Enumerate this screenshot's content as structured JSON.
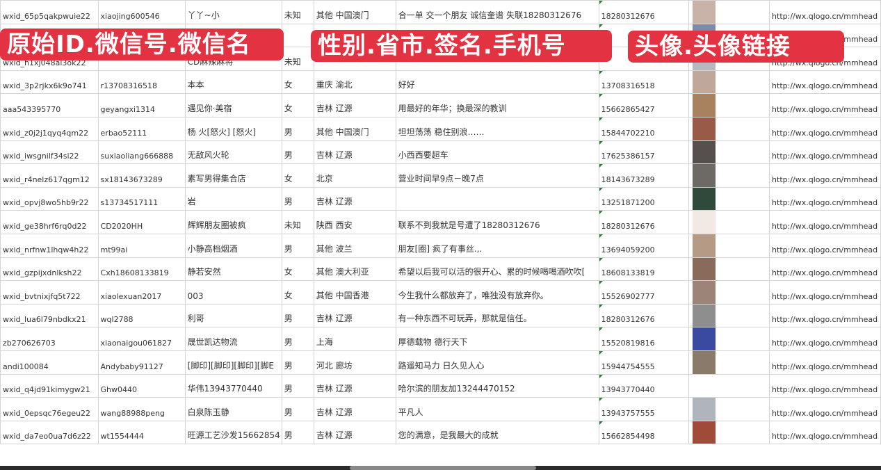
{
  "overlay_labels": [
    "原始ID.微信号.微信名",
    "性别.省市.签名.手机号",
    "头像.头像链接"
  ],
  "columns": [
    "原始ID",
    "微信号",
    "微信名",
    "性别",
    "省市",
    "签名",
    "手机号",
    "头像",
    "头像链接"
  ],
  "rows": [
    [
      "wxid_65p5qakpwuie22",
      "xiaojing600546",
      "丫丫~小",
      "未知",
      "其他 中国澳门",
      "合一单 交一个朋友 诚信奎谱 失联18280312676",
      "18280312676",
      "#c9b2a8",
      "http://wx.qlogo.cn/mmhead"
    ],
    [
      "",
      "",
      "",
      "",
      "",
      "",
      "",
      "#7d8aa8",
      "http://wx.qlogo.cn/mmhead"
    ],
    [
      "wxid_h1xj048al3ok22",
      "",
      "CD麻辣麻将",
      "未知",
      "",
      "",
      "",
      "#b8b8c0",
      "http://wx.qlogo.cn/mmhead"
    ],
    [
      "wxid_3p2rjkx6k9o741",
      "r13708316518",
      "本本",
      "女",
      "重庆 渝北",
      "好好",
      "13708316518",
      "#bfa89a",
      "http://wx.qlogo.cn/mmhead"
    ],
    [
      "aaa543395770",
      "geyangxi1314",
      "遇见你·美宿",
      "女",
      "吉林 辽源",
      "用最好的年华；换最深的教训",
      "15662865427",
      "#a8825e",
      "http://wx.qlogo.cn/mmhead"
    ],
    [
      "wxid_z0j2j1qyq4qm22",
      "erbao52111",
      "杨 火[怒火] [怒火]",
      "男",
      "其他 中国澳门",
      "坦坦荡荡 稳住别浪……",
      "15844702210",
      "#9a5a48",
      "http://wx.qlogo.cn/mmhead"
    ],
    [
      "wxid_iwsgnilf34si22",
      "suxiaoliang666888",
      "无敌风火轮",
      "男",
      "吉林 辽源",
      "小西西要超车",
      "17625386157",
      "#55504e",
      "http://wx.qlogo.cn/mmhead"
    ],
    [
      "wxid_r4nelz617qgm12",
      "sx18143673289",
      "素写男得集合店",
      "女",
      "北京",
      "营业时间早9点－晚7点",
      "18143673289",
      "#6d6a66",
      "http://wx.qlogo.cn/mmhead"
    ],
    [
      "wxid_opvj8wo5hb9r22",
      "s13734517111",
      "岩",
      "男",
      "吉林 辽源",
      "",
      "13251871200",
      "#2f4a3a",
      "http://wx.qlogo.cn/mmhead"
    ],
    [
      "wxid_ge38hrf6rq0d22",
      "CD2020HH",
      "辉辉朋友圈被疯",
      "未知",
      "陕西 西安",
      "联系不到我就是号遭了18280312676",
      "18280312676",
      "#f3e9e4",
      "http://wx.qlogo.cn/mmhead"
    ],
    [
      "wxid_nrfnw1lhqw4h22",
      "mt99ai",
      "小静高档烟酒",
      "男",
      "其他 波兰",
      "朋友[圈] 疯了有事丝.,.",
      "13694059200",
      "#b59a86",
      "http://wx.qlogo.cn/mmhead"
    ],
    [
      "wxid_gzpijxdnlksh22",
      "Cxh18608133819",
      "静若安然",
      "女",
      "其他 澳大利亚",
      "希望以后我可以活的很开心、累的时候喝喝酒吹吹[",
      "18608133819",
      "#8a6a5a",
      "http://wx.qlogo.cn/mmhead"
    ],
    [
      "wxid_bvtnixjfq5t722",
      "xiaolexuan2017",
      "003",
      "女",
      "其他 中国香港",
      "今生我什么都放弃了，唯独没有放弃你。",
      "15526902777",
      "#9c8478",
      "http://wx.qlogo.cn/mmhead"
    ],
    [
      "wxid_lua6l79nbdkx21",
      "wql2788",
      "利哥",
      "男",
      "吉林 辽源",
      "有一种东西不可玩弄，那就是信任。",
      "18280312676",
      "#8e8e8e",
      "http://wx.qlogo.cn/mmhead"
    ],
    [
      "zb270626703",
      "xiaonaigou061827",
      "晟世凯达物流",
      "男",
      "上海",
      "厚德载物 德行天下",
      "15520819816",
      "#3a4aa0",
      "http://wx.qlogo.cn/mmhead"
    ],
    [
      "andi100084",
      "Andybaby91127",
      "[脚印][脚印][脚印][脚E",
      "男",
      "河北 廊坊",
      "路遥知马力 日久见人心",
      "15944754555",
      "#8a7a6a",
      "http://wx.qlogo.cn/mmhead"
    ],
    [
      "wxid_q4jd91kimygw21",
      "Ghw0440",
      "华伟13943770440",
      "男",
      "吉林 辽源",
      "哈尔滨的朋友加13244470152",
      "13943770440",
      "#ffffff",
      "http://wx.qlogo.cn/mmhead"
    ],
    [
      "wxid_0epsqc76egeu22",
      "wang88988peng",
      "白泉陈玉静",
      "男",
      "吉林 辽源",
      "平凡人",
      "13943757555",
      "#b0b4bc",
      "http://wx.qlogo.cn/mmhead"
    ],
    [
      "wxid_da7eo0ua7d6z22",
      "wt1554444",
      "旺源工艺沙发15662854",
      "男",
      "吉林 辽源",
      "您的满意，是我最大的成就",
      "15662854498",
      "#a04a3a",
      "http://wx.qlogo.cn/mmhead"
    ]
  ],
  "colors": {
    "banner": "#e33242",
    "grid": "#d4d4d4"
  }
}
